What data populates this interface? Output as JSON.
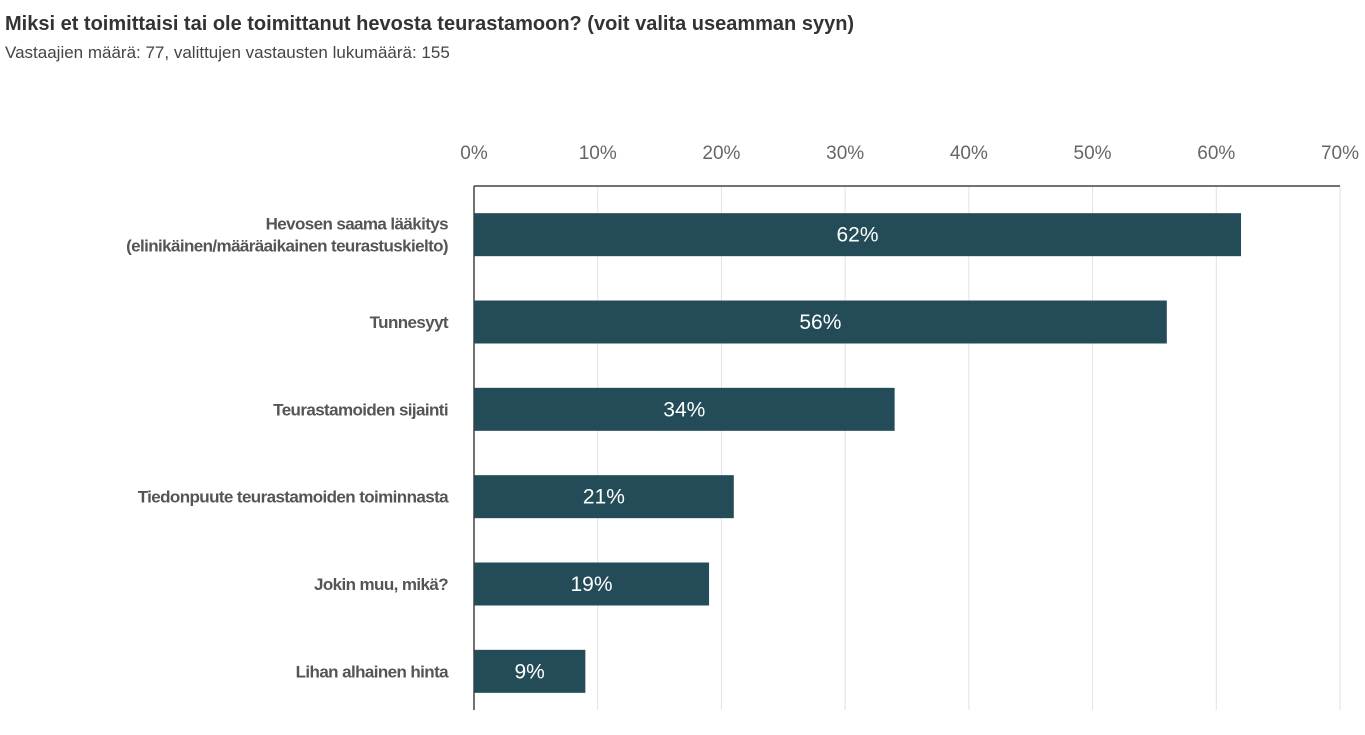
{
  "chart_data": {
    "type": "bar",
    "orientation": "horizontal",
    "title": "Miksi et toimittaisi tai ole toimittanut hevosta teurastamoon? (voit valita useamman syyn)",
    "subtitle": "Vastaajien määrä: 77, valittujen vastausten lukumäärä: 155",
    "categories": [
      [
        "Hevosen saama lääkitys",
        "(elinikäinen/määräaikainen teurastuskielto)"
      ],
      [
        "Tunnesyyt"
      ],
      [
        "Teurastamoiden sijainti"
      ],
      [
        "Tiedonpuute teurastamoiden toiminnasta"
      ],
      [
        "Jokin muu, mikä?"
      ],
      [
        "Lihan alhainen hinta"
      ]
    ],
    "values": [
      62,
      56,
      34,
      21,
      19,
      9
    ],
    "data_labels": [
      "62%",
      "56%",
      "34%",
      "21%",
      "19%",
      "9%"
    ],
    "xlim": [
      0,
      70
    ],
    "xticks": [
      0,
      10,
      20,
      30,
      40,
      50,
      60,
      70
    ],
    "xtick_labels": [
      "0%",
      "10%",
      "20%",
      "30%",
      "40%",
      "50%",
      "60%",
      "70%"
    ],
    "axis_position": "top",
    "grid": true,
    "bar_color": "#234b58"
  }
}
